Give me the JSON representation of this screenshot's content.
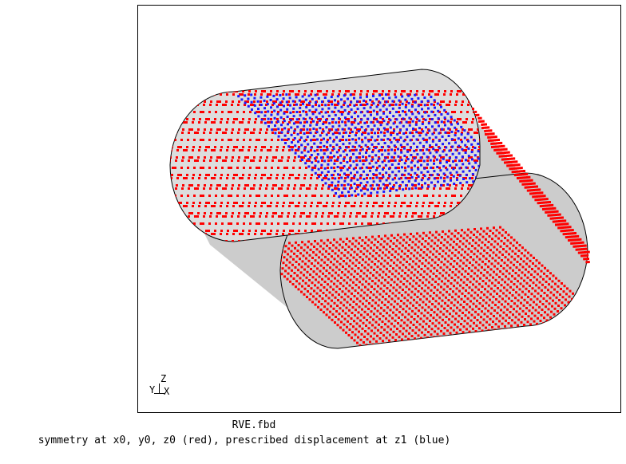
{
  "viewport": {
    "file_name": "RVE.fbd",
    "caption": "symmetry at x0, y0, z0 (red), prescribed displacement at z1 (blue)"
  },
  "axes": {
    "z": "Z",
    "y": "Y",
    "x": "X"
  },
  "colors": {
    "surface": "#cccccc",
    "surface_light": "#dedede",
    "symmetry_nodes": "#ff0000",
    "prescribed_nodes": "#1a1aff",
    "outline": "#000000"
  }
}
